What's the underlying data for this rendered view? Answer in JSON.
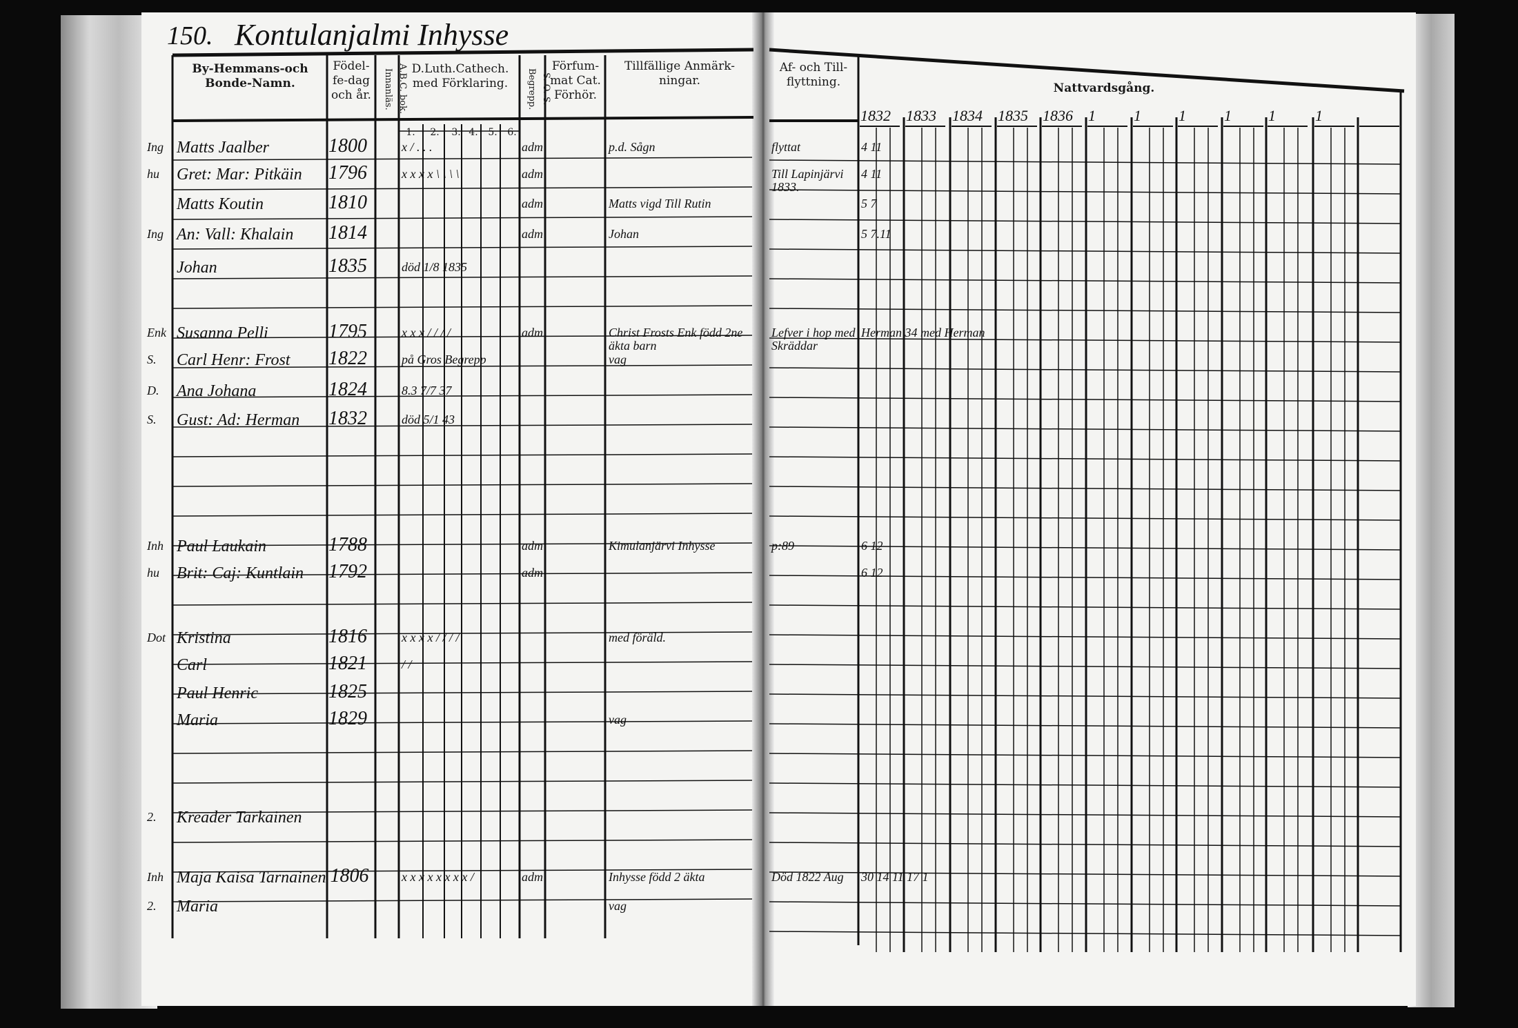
{
  "page": {
    "number": "150.",
    "title": "Kontulanjalmi Inhysse"
  },
  "left_headers": {
    "names": "By-Hemmans-och Bonde-Namn.",
    "birth": "Födel-fe-dag och år.",
    "abc": "A.B.C. bok. Innanläs.",
    "catechism": "D.Luth.Cathech. med Förklaring.",
    "catechism_cols": [
      "1.",
      "2.",
      "3.",
      "4.",
      "5.",
      "6."
    ],
    "begrepp": "S. O. S. Begrepp.",
    "forsummat": "Förfum-mat Cat. Förhör.",
    "remarks": "Tillfällige Anmärk-ningar."
  },
  "right_headers": {
    "moving": "Af- och Till-flyttning.",
    "communion": "Nattvardsgång.",
    "years": [
      "1832",
      "1833",
      "1834",
      "1835",
      "1836",
      "1",
      "1",
      "1",
      "1",
      "1",
      "1"
    ]
  },
  "entries": [
    {
      "prefix": "Ing",
      "name": "Matts Jaalber",
      "birth": "1800",
      "marks": "x / . . .",
      "begrepp": "adm",
      "remarks": "p.d. Sågn",
      "moving": "flyttat",
      "comm": "4 11"
    },
    {
      "prefix": "hu",
      "name": "Gret: Mar: Pitkäin",
      "birth": "1796",
      "marks": "x x x x \\ \\ \\ \\",
      "begrepp": "adm",
      "remarks": "",
      "moving": "Till Lapinjärvi 1833.",
      "comm": "4 11"
    },
    {
      "prefix": "",
      "name": "Matts Koutin",
      "birth": "1810",
      "marks": "",
      "begrepp": "adm",
      "remarks": "Matts vigd Till Rutin",
      "moving": "",
      "comm": "5 7"
    },
    {
      "prefix": "Ing",
      "name": "An: Vall: Khalain",
      "birth": "1814",
      "marks": "",
      "begrepp": "adm",
      "remarks": "Johan",
      "moving": "",
      "comm": "5 7.11"
    },
    {
      "prefix": "",
      "name": "Johan",
      "birth": "1835",
      "marks": "död 1/8 1835",
      "begrepp": "",
      "remarks": "",
      "moving": "",
      "comm": ""
    },
    {
      "prefix": "Enk",
      "name": "Susanna Pelli",
      "birth": "1795",
      "marks": "x x x / / / /",
      "begrepp": "adm",
      "remarks": "Christ Frosts Enk född 2ne äkta barn",
      "moving": "Lefver i hop med Skräddar",
      "comm": "Herman 34 med Herman"
    },
    {
      "prefix": "S.",
      "name": "Carl Henr: Frost",
      "birth": "1822",
      "marks": "på Gros Begrepp",
      "begrepp": "",
      "remarks": "vag",
      "moving": "",
      "comm": ""
    },
    {
      "prefix": "D.",
      "name": "Ana Johana",
      "birth": "1824",
      "marks": "8.3 7/7 37",
      "begrepp": "",
      "remarks": "",
      "moving": "",
      "comm": ""
    },
    {
      "prefix": "S.",
      "name": "Gust: Ad: Herman",
      "birth": "1832",
      "marks": "död 5/1 43",
      "begrepp": "",
      "remarks": "",
      "moving": "",
      "comm": ""
    },
    {
      "prefix": "Inh",
      "name": "Paul Laukain",
      "birth": "1788",
      "marks": "",
      "begrepp": "adm",
      "remarks": "Kimulanjärvi Inhysse",
      "moving": "p:89",
      "comm": "6 12"
    },
    {
      "prefix": "hu",
      "name": "Brit: Caj: Kuntlain",
      "birth": "1792",
      "marks": "",
      "begrepp": "adm",
      "remarks": "",
      "moving": "",
      "comm": "6 12"
    },
    {
      "prefix": "Dot",
      "name": "Kristina",
      "birth": "1816",
      "marks": "x x x x / / / /",
      "begrepp": "",
      "remarks": "med föräld.",
      "moving": "",
      "comm": ""
    },
    {
      "prefix": "",
      "name": "Carl",
      "birth": "1821",
      "marks": "/ /",
      "begrepp": "",
      "remarks": "",
      "moving": "",
      "comm": ""
    },
    {
      "prefix": "",
      "name": "Paul Henric",
      "birth": "1825",
      "marks": "",
      "begrepp": "",
      "remarks": "",
      "moving": "",
      "comm": ""
    },
    {
      "prefix": "",
      "name": "Maria",
      "birth": "1829",
      "marks": "",
      "begrepp": "",
      "remarks": "vag",
      "moving": "",
      "comm": ""
    },
    {
      "prefix": "2.",
      "name": "Kreader Tarkainen",
      "birth": "",
      "marks": "",
      "begrepp": "",
      "remarks": "",
      "moving": "",
      "comm": ""
    },
    {
      "prefix": "Inh",
      "name": "Maja Kaisa Tarnainen",
      "birth": "1806",
      "marks": "x x x x x x x x /",
      "begrepp": "adm",
      "remarks": "Inhysse född 2 äkta",
      "moving": "Död 1822 Aug",
      "comm": "30 14 11 17 1"
    },
    {
      "prefix": "2.",
      "name": "Maria",
      "birth": "",
      "marks": "",
      "begrepp": "",
      "remarks": "vag",
      "moving": "",
      "comm": ""
    }
  ]
}
